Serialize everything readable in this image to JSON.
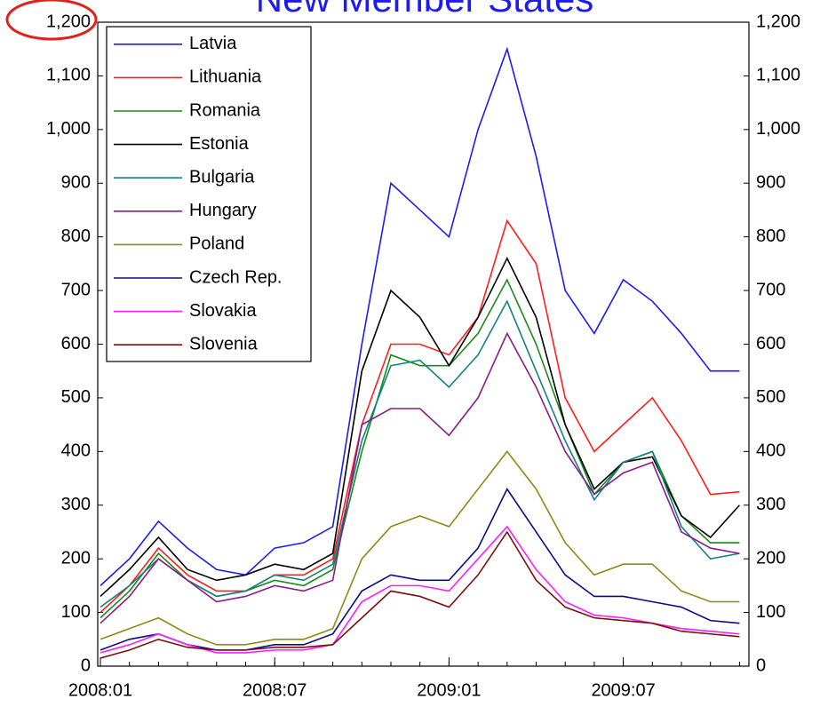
{
  "chart_data": {
    "type": "line",
    "title": "New Member States",
    "x": [
      "2008:01",
      "2008:02",
      "2008:03",
      "2008:04",
      "2008:05",
      "2008:06",
      "2008:07",
      "2008:08",
      "2008:09",
      "2008:10",
      "2008:11",
      "2008:12",
      "2009:01",
      "2009:02",
      "2009:03",
      "2009:04",
      "2009:05",
      "2009:06",
      "2009:07",
      "2009:08",
      "2009:09",
      "2009:10",
      "2009:11"
    ],
    "xticks": [
      "2008:01",
      "2008:07",
      "2009:01",
      "2009:07"
    ],
    "ylim": [
      0,
      1200
    ],
    "yticks": [
      0,
      100,
      200,
      300,
      400,
      500,
      600,
      700,
      800,
      900,
      {
        "value": 1000,
        "label": "1,000"
      },
      {
        "value": 1100,
        "label": "1,100"
      },
      {
        "value": 1200,
        "label": "1,200"
      }
    ],
    "y2lim": [
      0,
      1200
    ],
    "y2ticks": [
      0,
      100,
      200,
      300,
      400,
      500,
      600,
      700,
      800,
      900,
      {
        "value": 1000,
        "label": "1,000"
      },
      {
        "value": 1100,
        "label": "1,100"
      },
      {
        "value": 1200,
        "label": "1,200"
      }
    ],
    "legend": "upper left",
    "series": [
      {
        "name": "Latvia",
        "color": "#1c1cf0",
        "values": [
          150,
          200,
          270,
          220,
          180,
          170,
          220,
          230,
          260,
          600,
          900,
          850,
          800,
          1000,
          1150,
          950,
          700,
          620,
          720,
          680,
          620,
          550,
          550
        ]
      },
      {
        "name": "Lithuania",
        "color": "#ff1c1c",
        "values": [
          100,
          150,
          220,
          170,
          140,
          140,
          170,
          170,
          200,
          450,
          600,
          600,
          580,
          650,
          830,
          750,
          500,
          400,
          450,
          500,
          420,
          320,
          325
        ]
      },
      {
        "name": "Romania",
        "color": "#1a8a1a",
        "values": [
          90,
          140,
          210,
          160,
          130,
          140,
          160,
          150,
          180,
          400,
          580,
          560,
          560,
          620,
          720,
          600,
          450,
          320,
          380,
          400,
          280,
          230,
          230
        ]
      },
      {
        "name": "Estonia",
        "color": "#000000",
        "values": [
          130,
          180,
          240,
          180,
          160,
          170,
          190,
          180,
          210,
          550,
          700,
          650,
          560,
          650,
          760,
          650,
          450,
          330,
          380,
          390,
          280,
          240,
          300
        ]
      },
      {
        "name": "Bulgaria",
        "color": "#128282",
        "values": [
          110,
          150,
          200,
          160,
          130,
          140,
          170,
          160,
          190,
          420,
          560,
          570,
          520,
          580,
          680,
          550,
          420,
          310,
          380,
          400,
          260,
          200,
          210
        ]
      },
      {
        "name": "Hungary",
        "color": "#8a1a8a",
        "values": [
          80,
          130,
          200,
          160,
          120,
          130,
          150,
          140,
          160,
          450,
          480,
          480,
          430,
          500,
          620,
          520,
          400,
          320,
          360,
          380,
          250,
          220,
          210
        ]
      },
      {
        "name": "Poland",
        "color": "#8c8c14",
        "values": [
          50,
          70,
          90,
          60,
          40,
          40,
          50,
          50,
          70,
          200,
          260,
          280,
          260,
          330,
          400,
          330,
          230,
          170,
          190,
          190,
          140,
          120,
          120
        ]
      },
      {
        "name": "Czech Rep.",
        "color": "#0a0a8a",
        "values": [
          30,
          50,
          60,
          40,
          30,
          30,
          40,
          40,
          60,
          140,
          170,
          160,
          160,
          220,
          330,
          250,
          170,
          130,
          130,
          120,
          110,
          85,
          80
        ]
      },
      {
        "name": "Slovakia",
        "color": "#ff1cff",
        "values": [
          25,
          40,
          60,
          40,
          25,
          25,
          30,
          30,
          40,
          120,
          150,
          150,
          140,
          200,
          260,
          180,
          120,
          95,
          90,
          80,
          70,
          65,
          60
        ]
      },
      {
        "name": "Slovenia",
        "color": "#7a1010",
        "values": [
          15,
          30,
          50,
          35,
          30,
          30,
          35,
          35,
          40,
          90,
          140,
          130,
          110,
          170,
          250,
          160,
          110,
          90,
          85,
          80,
          65,
          60,
          55
        ]
      }
    ]
  }
}
